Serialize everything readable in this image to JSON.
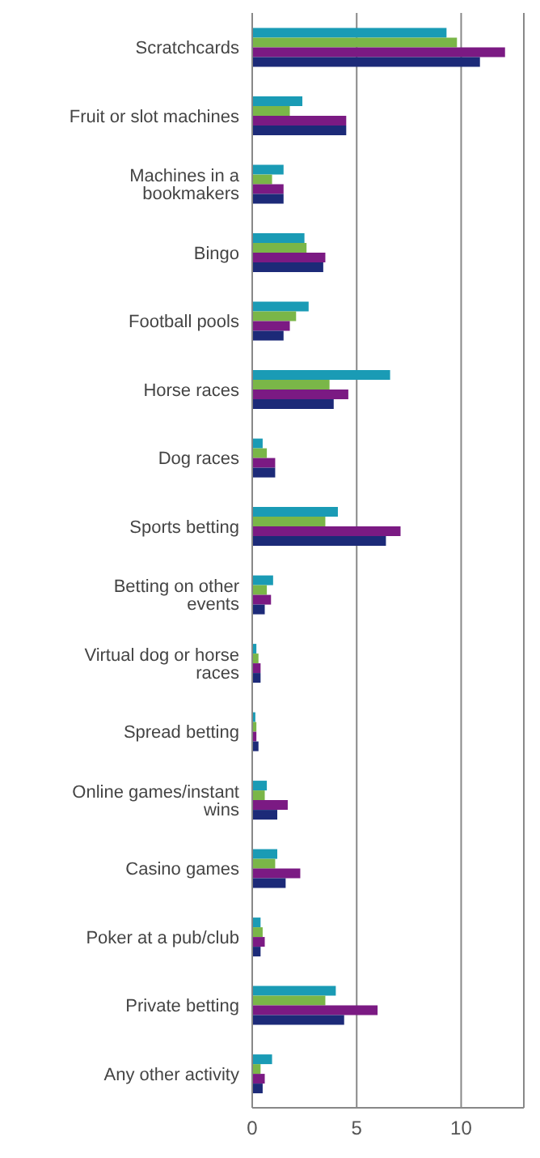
{
  "chart_data": {
    "type": "bar",
    "orientation": "horizontal",
    "categories": [
      "Scratchcards",
      "Fruit or slot machines",
      "Machines in a bookmakers",
      "Bingo",
      "Football pools",
      "Horse races",
      "Dog races",
      "Sports betting",
      "Betting on other events",
      "Virtual dog or horse races",
      "Spread betting",
      "Online games/instant wins",
      "Casino games",
      "Poker at a pub/club",
      "Private betting",
      "Any other activity"
    ],
    "series": [
      {
        "color": "#1a9bb5",
        "values": [
          9.3,
          2.4,
          1.5,
          2.5,
          2.7,
          6.6,
          0.5,
          4.1,
          1.0,
          0.2,
          0.15,
          0.7,
          1.2,
          0.4,
          4.0,
          0.95
        ]
      },
      {
        "color": "#7ab648",
        "values": [
          9.8,
          1.8,
          0.95,
          2.6,
          2.1,
          3.7,
          0.7,
          3.5,
          0.7,
          0.3,
          0.2,
          0.6,
          1.1,
          0.5,
          3.5,
          0.4
        ]
      },
      {
        "color": "#7b1a83",
        "values": [
          12.1,
          4.5,
          1.5,
          3.5,
          1.8,
          4.6,
          1.1,
          7.1,
          0.9,
          0.4,
          0.2,
          1.7,
          2.3,
          0.6,
          6.0,
          0.6
        ]
      },
      {
        "color": "#1c2a78",
        "values": [
          10.9,
          4.5,
          1.5,
          3.4,
          1.5,
          3.9,
          1.1,
          6.4,
          0.6,
          0.4,
          0.3,
          1.2,
          1.6,
          0.4,
          4.4,
          0.5
        ]
      }
    ],
    "xlim": [
      0,
      13
    ],
    "xticks": [
      0,
      5,
      10
    ],
    "grid": "x",
    "legend": false
  }
}
